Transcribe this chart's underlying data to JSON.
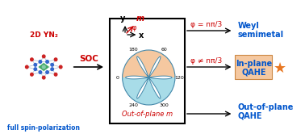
{
  "crystal_label": "2D YN₂",
  "crystal_sublabel": "full spin-polarization",
  "soc_label": "SOC",
  "axis_y": "y",
  "axis_x": "x",
  "axis_m": "m",
  "axis_phi": "φ",
  "polar_ticks": [
    "120",
    "60",
    "180",
    "0",
    "240",
    "300"
  ],
  "condition1": "φ = nπ/3",
  "result1_line1": "Weyl",
  "result1_line2": "semimetal",
  "condition2": "φ ≠ nπ/3",
  "result2_line1": "In-plane",
  "result2_line2": "QAHE",
  "condition3": "Out-of-plane m",
  "result3_line1": "Out-of-plane",
  "result3_line2": "QAHE",
  "red_color": "#cc0000",
  "blue_color": "#0055cc",
  "orange_color": "#e87722",
  "box_bg": "#f5c8a0",
  "polar_bg_upper": "#f5c8a0",
  "polar_bg_lower": "#a8dce8",
  "polar_line_color": "#4488aa",
  "crystal_node_red": "#cc2222",
  "crystal_node_blue": "#3366cc",
  "crystal_bond_color": "#aabbcc",
  "crystal_center_green": "#44aa66"
}
